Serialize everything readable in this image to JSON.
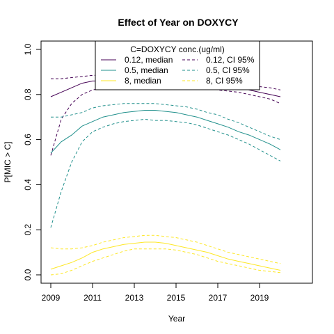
{
  "chart_data": {
    "type": "line",
    "title": "Effect of Year on DOXYCY",
    "xlabel": "Year",
    "ylabel": "P[MIC > C]",
    "xlim": [
      2009,
      2020
    ],
    "ylim": [
      0.0,
      1.0
    ],
    "x_ticks": [
      "2009",
      "2011",
      "2013",
      "2015",
      "2017",
      "2019"
    ],
    "y_ticks": [
      "0.0",
      "0.2",
      "0.4",
      "0.6",
      "0.8",
      "1.0"
    ],
    "grid": false,
    "legend": {
      "title": "C=DOXYCY conc.(ug/ml)",
      "placement": "top-center",
      "entries": [
        {
          "label": "0.12, median",
          "color": "#440154",
          "dash": "solid"
        },
        {
          "label": "0.12, CI 95%",
          "color": "#440154",
          "dash": "dashed"
        },
        {
          "label": "0.5, median",
          "color": "#21908C",
          "dash": "solid"
        },
        {
          "label": "0.5, CI 95%",
          "color": "#21908C",
          "dash": "dashed"
        },
        {
          "label": "8, median",
          "color": "#FDE725",
          "dash": "solid"
        },
        {
          "label": "8, CI 95%",
          "color": "#FDE725",
          "dash": "dashed"
        }
      ]
    },
    "x": [
      2009,
      2009.5,
      2010,
      2010.5,
      2011,
      2011.5,
      2012,
      2012.5,
      2013,
      2013.5,
      2014,
      2014.5,
      2015,
      2015.5,
      2016,
      2016.5,
      2017,
      2017.5,
      2018,
      2018.5,
      2019,
      2019.5,
      2020
    ],
    "series": [
      {
        "name": "0.12, median",
        "color": "#440154",
        "dash": "solid",
        "values": [
          0.79,
          0.81,
          0.83,
          0.85,
          0.86,
          0.86,
          0.86,
          0.86,
          0.86,
          0.86,
          0.86,
          0.86,
          0.86,
          0.85,
          0.85,
          0.85,
          0.84,
          0.84,
          0.83,
          0.82,
          0.81,
          0.8,
          0.79
        ]
      },
      {
        "name": "0.12, CI 95% upper",
        "color": "#440154",
        "dash": "dashed",
        "values": [
          0.87,
          0.87,
          0.875,
          0.88,
          0.885,
          0.885,
          0.885,
          0.885,
          0.885,
          0.885,
          0.885,
          0.885,
          0.885,
          0.88,
          0.875,
          0.87,
          0.865,
          0.86,
          0.85,
          0.84,
          0.835,
          0.83,
          0.82
        ]
      },
      {
        "name": "0.12, CI 95% lower",
        "color": "#440154",
        "dash": "dashed",
        "values": [
          0.53,
          0.69,
          0.76,
          0.8,
          0.82,
          0.83,
          0.84,
          0.84,
          0.84,
          0.84,
          0.84,
          0.84,
          0.84,
          0.84,
          0.83,
          0.83,
          0.82,
          0.815,
          0.81,
          0.8,
          0.79,
          0.78,
          0.76
        ]
      },
      {
        "name": "0.5, median",
        "color": "#21908C",
        "dash": "solid",
        "values": [
          0.54,
          0.59,
          0.62,
          0.66,
          0.68,
          0.7,
          0.71,
          0.72,
          0.725,
          0.73,
          0.73,
          0.725,
          0.72,
          0.71,
          0.7,
          0.685,
          0.67,
          0.655,
          0.635,
          0.62,
          0.6,
          0.58,
          0.555
        ]
      },
      {
        "name": "0.5, CI 95% upper",
        "color": "#21908C",
        "dash": "dashed",
        "values": [
          0.7,
          0.7,
          0.71,
          0.72,
          0.74,
          0.75,
          0.755,
          0.76,
          0.76,
          0.76,
          0.76,
          0.755,
          0.75,
          0.745,
          0.735,
          0.72,
          0.71,
          0.69,
          0.675,
          0.655,
          0.635,
          0.615,
          0.6
        ]
      },
      {
        "name": "0.5, CI 95% lower",
        "color": "#21908C",
        "dash": "dashed",
        "values": [
          0.21,
          0.37,
          0.5,
          0.59,
          0.635,
          0.655,
          0.67,
          0.68,
          0.685,
          0.69,
          0.685,
          0.685,
          0.68,
          0.675,
          0.665,
          0.65,
          0.635,
          0.62,
          0.6,
          0.58,
          0.555,
          0.53,
          0.505
        ]
      },
      {
        "name": "8, median",
        "color": "#FDE725",
        "dash": "solid",
        "values": [
          0.025,
          0.04,
          0.055,
          0.075,
          0.1,
          0.115,
          0.125,
          0.135,
          0.14,
          0.145,
          0.145,
          0.14,
          0.13,
          0.12,
          0.11,
          0.1,
          0.085,
          0.07,
          0.06,
          0.05,
          0.04,
          0.03,
          0.02
        ]
      },
      {
        "name": "8, CI 95% upper",
        "color": "#FDE725",
        "dash": "dashed",
        "values": [
          0.12,
          0.115,
          0.115,
          0.12,
          0.13,
          0.145,
          0.155,
          0.165,
          0.17,
          0.175,
          0.175,
          0.17,
          0.165,
          0.155,
          0.145,
          0.13,
          0.115,
          0.1,
          0.09,
          0.08,
          0.07,
          0.06,
          0.05
        ]
      },
      {
        "name": "8, CI 95% lower",
        "color": "#FDE725",
        "dash": "dashed",
        "values": [
          0.0,
          0.005,
          0.02,
          0.04,
          0.06,
          0.075,
          0.09,
          0.105,
          0.115,
          0.115,
          0.115,
          0.115,
          0.11,
          0.1,
          0.09,
          0.075,
          0.06,
          0.05,
          0.04,
          0.03,
          0.02,
          0.015,
          0.01
        ]
      }
    ]
  }
}
